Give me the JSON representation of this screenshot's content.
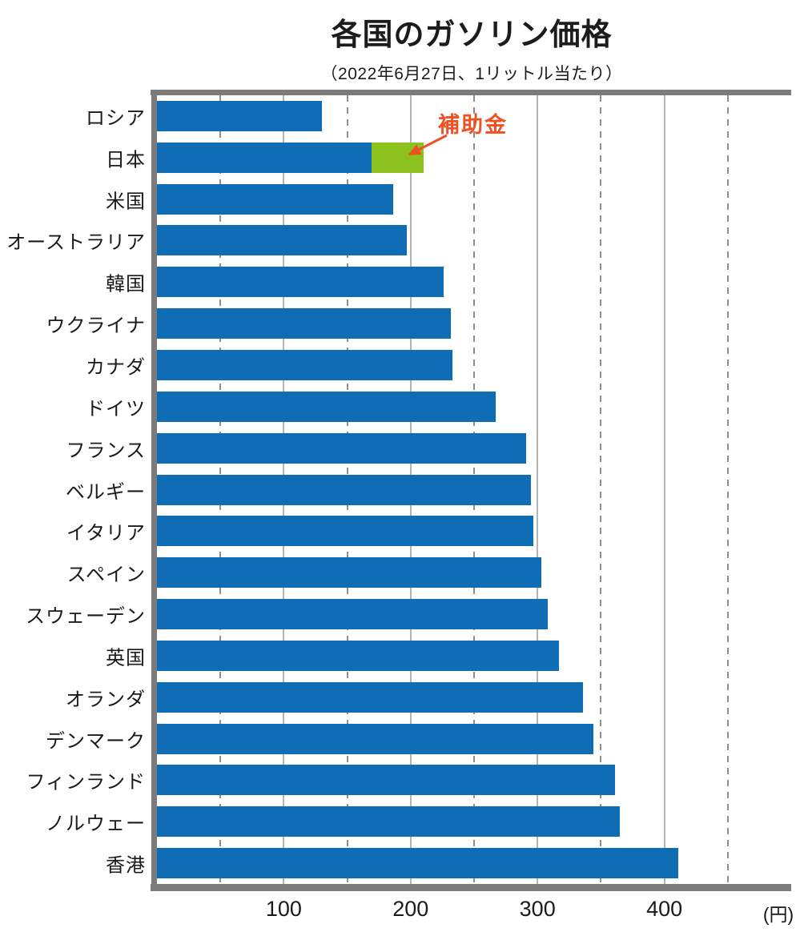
{
  "chart_data": {
    "type": "bar",
    "orientation": "horizontal",
    "title": "各国のガソリン価格",
    "subtitle": "（2022年6月27日、1リットル当たり）",
    "unit_label": "(円)",
    "xlim": [
      0,
      500
    ],
    "x_ticks": [
      100,
      200,
      300,
      400
    ],
    "grid": {
      "solid_at": [
        100,
        200,
        300,
        400
      ],
      "dashed_at": [
        50,
        150,
        250,
        350,
        450
      ],
      "legend": "none"
    },
    "categories": [
      "ロシア",
      "日本",
      "米国",
      "オーストラリア",
      "韓国",
      "ウクライナ",
      "カナダ",
      "ドイツ",
      "フランス",
      "ベルギー",
      "イタリア",
      "スペイン",
      "スウェーデン",
      "英国",
      "オランダ",
      "デンマーク",
      "フィンランド",
      "ノルウェー",
      "香港"
    ],
    "values": [
      130,
      210,
      186,
      197,
      226,
      232,
      233,
      267,
      291,
      295,
      297,
      303,
      308,
      317,
      336,
      344,
      361,
      365,
      411
    ],
    "japan": {
      "category": "日本",
      "base_price": 169,
      "subsidy": 41,
      "total": 210,
      "annotation": "補助金"
    }
  },
  "colors": {
    "bar_blue": "#0e6db5",
    "subsidy_green": "#8dc21e",
    "annotation_orange": "#ef5123",
    "frame_gray": "#7b7b7b",
    "grid_solid": "#b5b5b5",
    "grid_dashed": "#8f8f8f",
    "text": "#1a1a1a"
  }
}
